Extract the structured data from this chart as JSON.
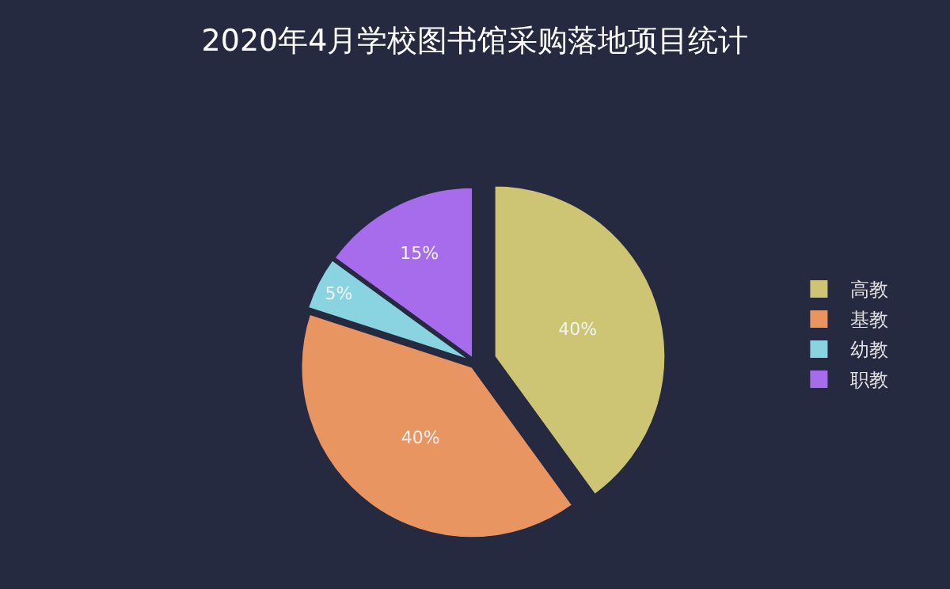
{
  "chart_data": {
    "type": "pie",
    "title": "2020年4月学校图书馆采购落地项目统计",
    "categories": [
      "高教",
      "基教",
      "幼教",
      "职教"
    ],
    "values": [
      40,
      40,
      5,
      15
    ],
    "value_labels": [
      "40%",
      "40%",
      "5%",
      "15%"
    ],
    "colors": [
      "#cdc574",
      "#e99562",
      "#8ad3e1",
      "#a76ceb"
    ],
    "legend": "right"
  }
}
